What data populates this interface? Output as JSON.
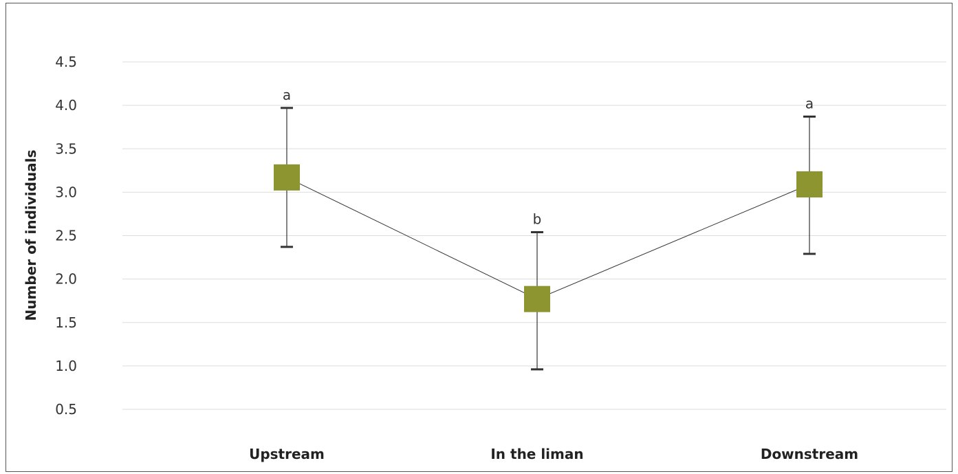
{
  "chart_data": {
    "type": "line",
    "title": "",
    "xlabel": "",
    "ylabel": "Number of individuals",
    "categories": [
      "Upstream",
      "In the liman",
      "Downstream"
    ],
    "values": [
      3.17,
      1.77,
      3.09
    ],
    "error_low": [
      2.37,
      0.96,
      2.29
    ],
    "error_high": [
      3.97,
      2.54,
      3.87
    ],
    "annotations": [
      "a",
      "b",
      "a"
    ],
    "ylim": [
      0.5,
      4.5
    ],
    "yticks": [
      "0.5",
      "1.0",
      "1.5",
      "2.0",
      "2.5",
      "3.0",
      "3.5",
      "4.0",
      "4.5"
    ],
    "grid": true,
    "legend": "none",
    "marker": "square",
    "colors": {
      "marker": "#8c9530",
      "line": "#333333",
      "grid": "#dddddd",
      "errorbar": "#333333"
    }
  }
}
